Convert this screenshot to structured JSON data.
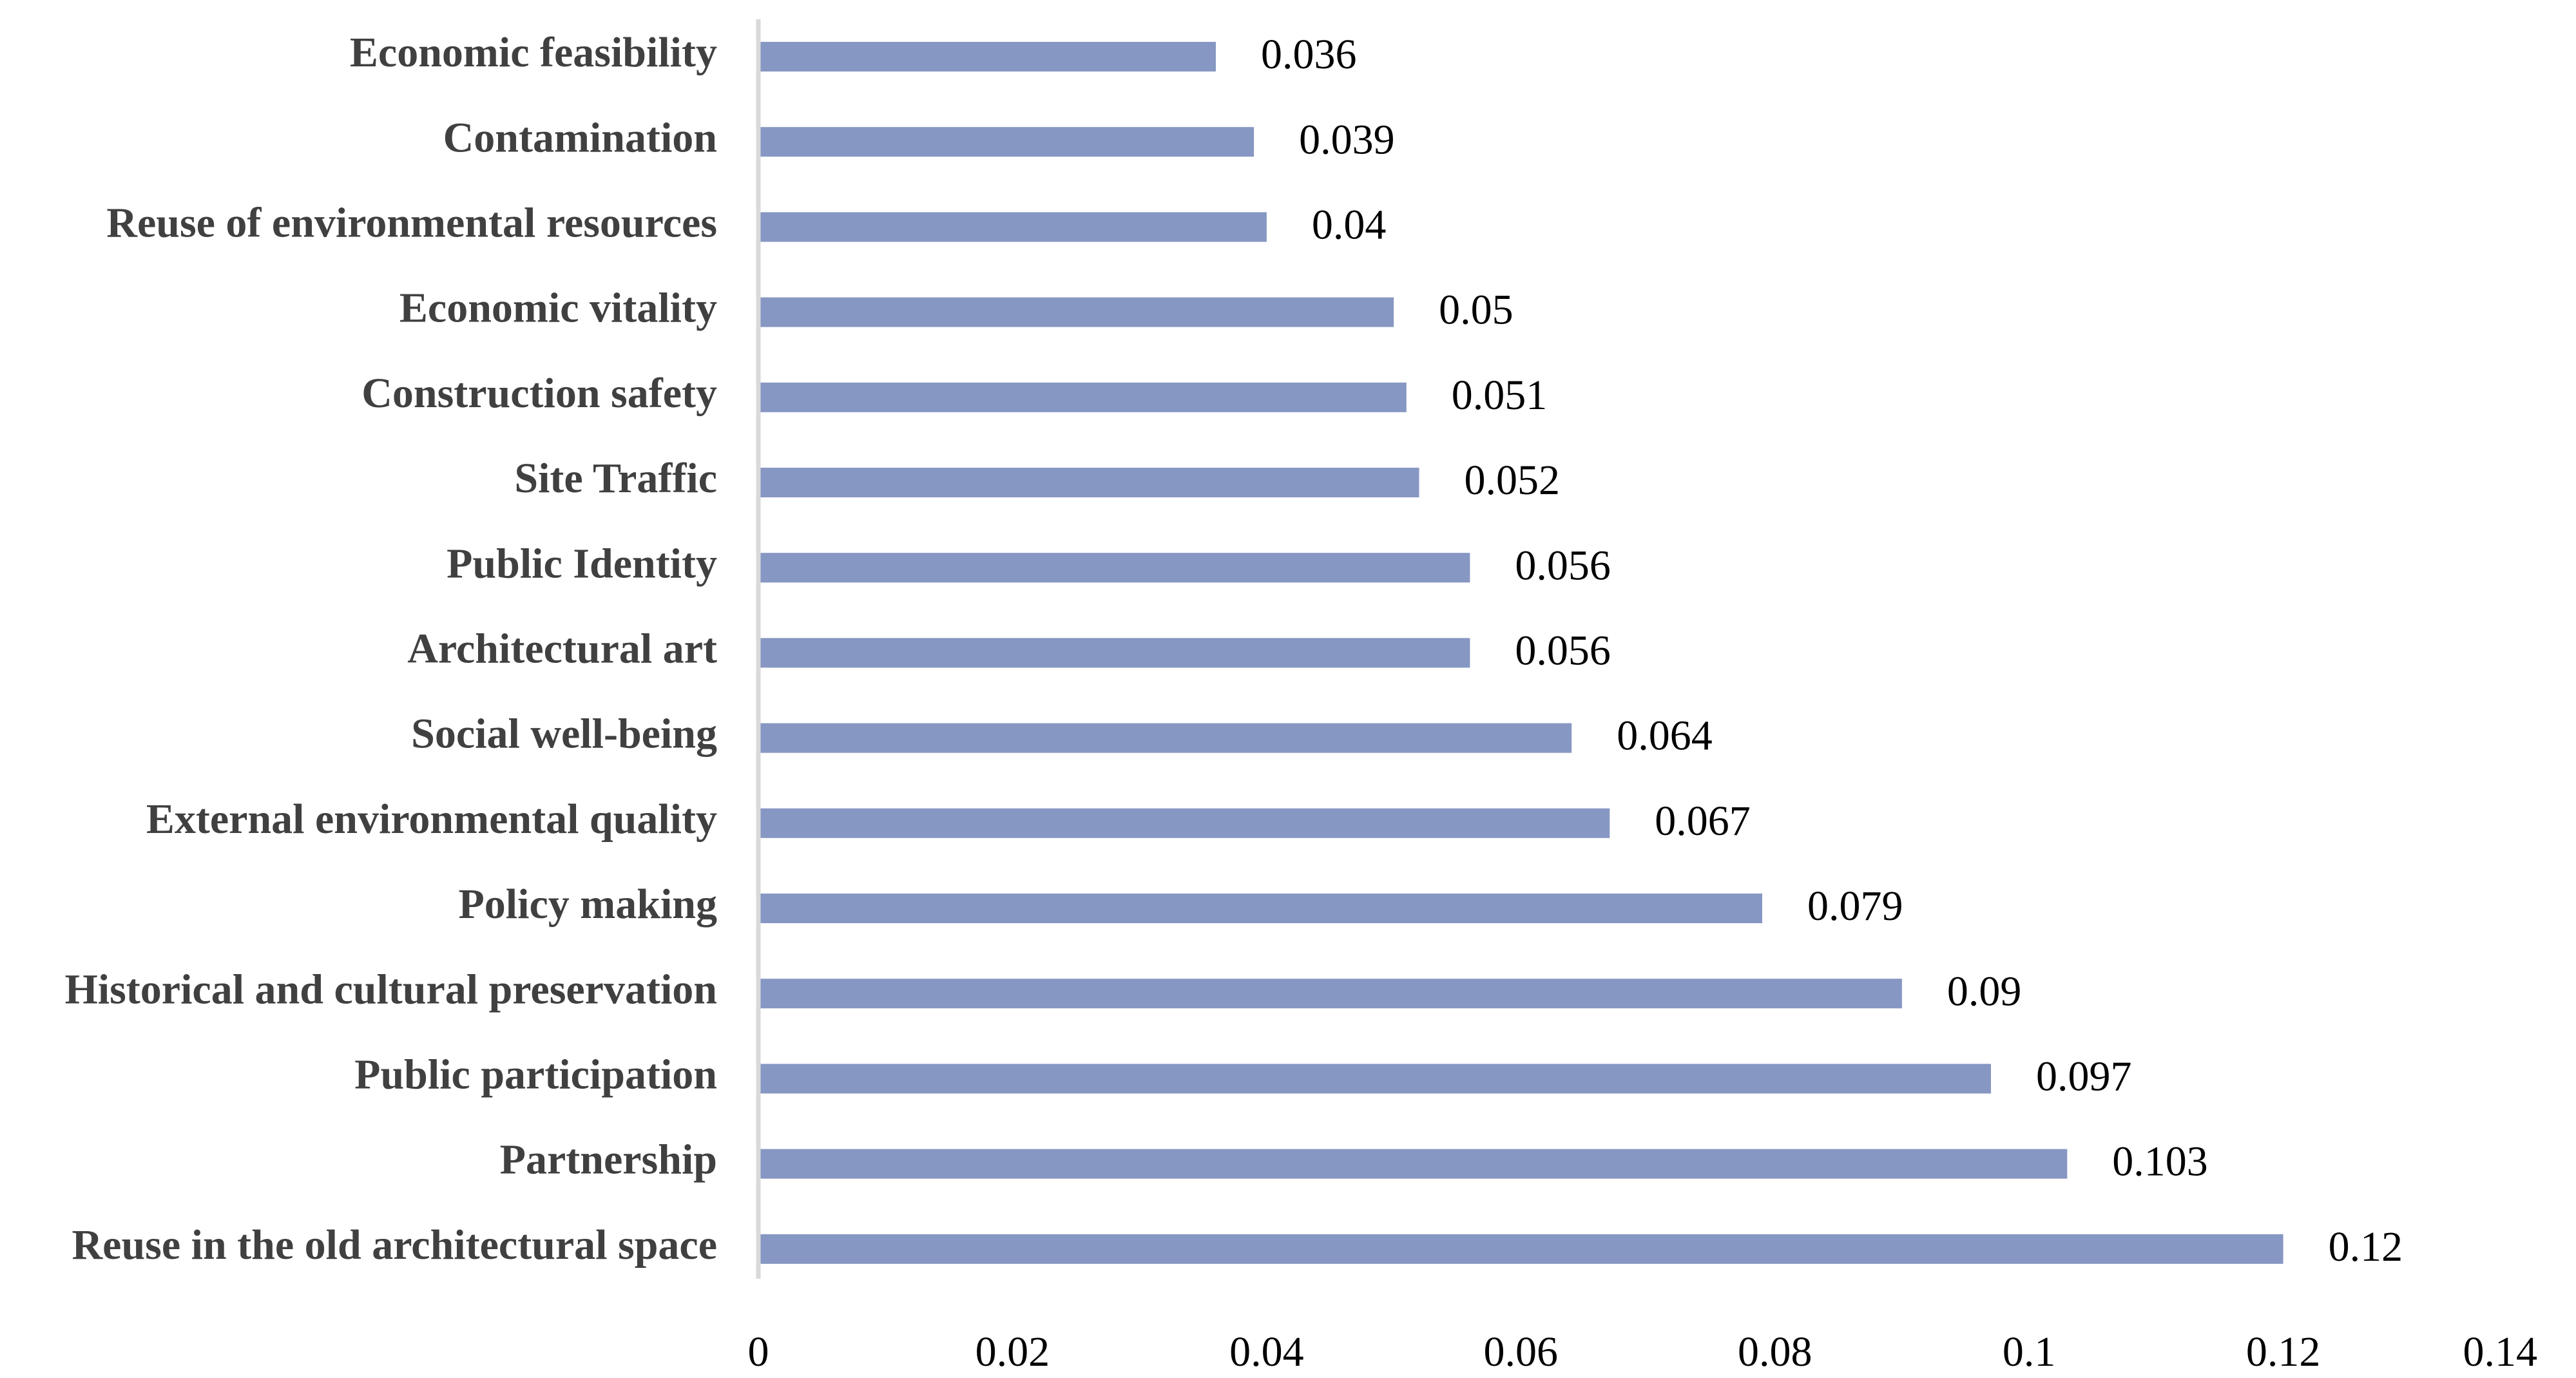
{
  "chart_data": {
    "type": "bar",
    "orientation": "horizontal",
    "title": "",
    "xlabel": "",
    "ylabel": "",
    "xlim": [
      0,
      0.14
    ],
    "ticks": [
      "0",
      "0.02",
      "0.04",
      "0.06",
      "0.08",
      "0.1",
      "0.12",
      "0.14"
    ],
    "tick_values": [
      0,
      0.02,
      0.04,
      0.06,
      0.08,
      0.1,
      0.12,
      0.14
    ],
    "grid": false,
    "bar_color": "#8797C3",
    "axis_color": "#D9D9D9",
    "categories": [
      "Economic feasibility",
      "Contamination",
      "Reuse of environmental resources",
      "Economic vitality",
      "Construction safety",
      "Site Traffic",
      "Public Identity",
      "Architectural art",
      "Social well-being",
      "External environmental quality",
      "Policy making",
      "Historical and cultural preservation",
      "Public participation",
      "Partnership",
      "Reuse in the old architectural space"
    ],
    "values": [
      0.036,
      0.039,
      0.04,
      0.05,
      0.051,
      0.052,
      0.056,
      0.056,
      0.064,
      0.067,
      0.079,
      0.09,
      0.097,
      0.103,
      0.12
    ],
    "value_labels": [
      "0.036",
      "0.039",
      "0.04",
      "0.05",
      "0.051",
      "0.052",
      "0.056",
      "0.056",
      "0.064",
      "0.067",
      "0.079",
      "0.09",
      "0.097",
      "0.103",
      "0.12"
    ]
  }
}
